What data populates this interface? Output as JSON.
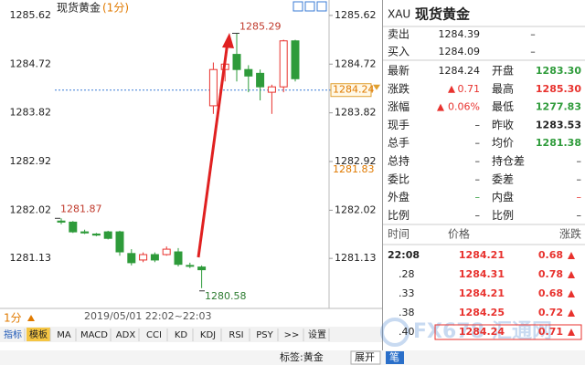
{
  "chart_data": {
    "type": "candlestick",
    "title": "现货黄金",
    "title_period": "(1分)",
    "period": "1分",
    "time_range": "2019/05/01 22:02~22:03",
    "open": [
      1281.82,
      1281.8,
      1281.62,
      1281.58,
      1281.62,
      1281.62,
      1281.22,
      1281.1,
      1281.2,
      1281.2,
      1281.25,
      1281.0,
      1280.97,
      1283.95,
      1284.62,
      1284.9,
      1284.62,
      1284.55,
      1284.2,
      1284.3,
      1285.15
    ],
    "high": [
      1281.87,
      1281.82,
      1281.66,
      1281.6,
      1281.64,
      1281.64,
      1281.3,
      1281.24,
      1281.24,
      1281.35,
      1281.32,
      1281.05,
      1281.0,
      1284.75,
      1284.88,
      1285.29,
      1284.7,
      1284.62,
      1284.34,
      1285.17,
      1285.17
    ],
    "low": [
      1281.76,
      1281.6,
      1281.58,
      1281.54,
      1281.48,
      1281.18,
      1281.0,
      1281.06,
      1281.06,
      1281.18,
      1280.98,
      1280.95,
      1280.58,
      1283.8,
      1284.4,
      1284.4,
      1284.2,
      1284.05,
      1283.8,
      1284.2,
      1284.4
    ],
    "close": [
      1281.8,
      1281.62,
      1281.6,
      1281.56,
      1281.5,
      1281.25,
      1281.05,
      1281.2,
      1281.1,
      1281.3,
      1281.02,
      1281.0,
      1280.92,
      1284.62,
      1284.72,
      1284.62,
      1284.5,
      1284.3,
      1284.3,
      1285.15,
      1284.45
    ],
    "ylim": [
      1280.34,
      1285.77
    ],
    "yticks": [
      1285.62,
      1284.72,
      1283.82,
      1282.92,
      1282.02,
      1281.13
    ],
    "start_label": 1281.87,
    "high_label": 1285.29,
    "low_label": 1280.58,
    "last_price": 1284.24,
    "marker_price": 1281.83,
    "up_color": "#e8322e",
    "down_color": "#2e9b3a",
    "price_line_color": "#3a7bd5"
  },
  "toolbar": {
    "items": [
      "指标",
      "模板",
      "MA",
      "MACD",
      "ADX",
      "CCI",
      "KD",
      "KDJ",
      "RSI",
      "PSY",
      ">>",
      "设置"
    ]
  },
  "status_bar": {
    "tag": "标签:黄金",
    "expand": "展开",
    "tick": "笔"
  },
  "quote": {
    "symbol": "XAU",
    "name": "现货黄金",
    "book": [
      [
        "卖出",
        "1284.39",
        "–"
      ],
      [
        "买入",
        "1284.09",
        "–"
      ]
    ],
    "stats": [
      [
        "最新",
        "1284.24",
        "开盘",
        "1283.30"
      ],
      [
        "涨跌",
        "0.71",
        "最高",
        "1285.30"
      ],
      [
        "涨幅",
        "0.06%",
        "最低",
        "1277.83"
      ],
      [
        "现手",
        "–",
        "昨收",
        "1283.53"
      ],
      [
        "总手",
        "–",
        "均价",
        "1281.38"
      ],
      [
        "总持",
        "–",
        "持仓差",
        "–"
      ],
      [
        "委比",
        "–",
        "委差",
        "–"
      ],
      [
        "外盘",
        "–",
        "内盘",
        "–"
      ],
      [
        "比例",
        "–",
        "比例",
        "–"
      ]
    ],
    "trades_header": [
      "时间",
      "价格",
      "涨跌"
    ],
    "trades": [
      [
        "22:08",
        "1284.21",
        "0.68"
      ],
      [
        ".28",
        "1284.31",
        "0.78"
      ],
      [
        ".33",
        "1284.21",
        "0.68"
      ],
      [
        ".38",
        "1284.25",
        "0.72"
      ],
      [
        ".40",
        "1284.24",
        "0.71"
      ]
    ]
  },
  "watermark": {
    "brand": "FX678",
    "name": "汇通网"
  }
}
